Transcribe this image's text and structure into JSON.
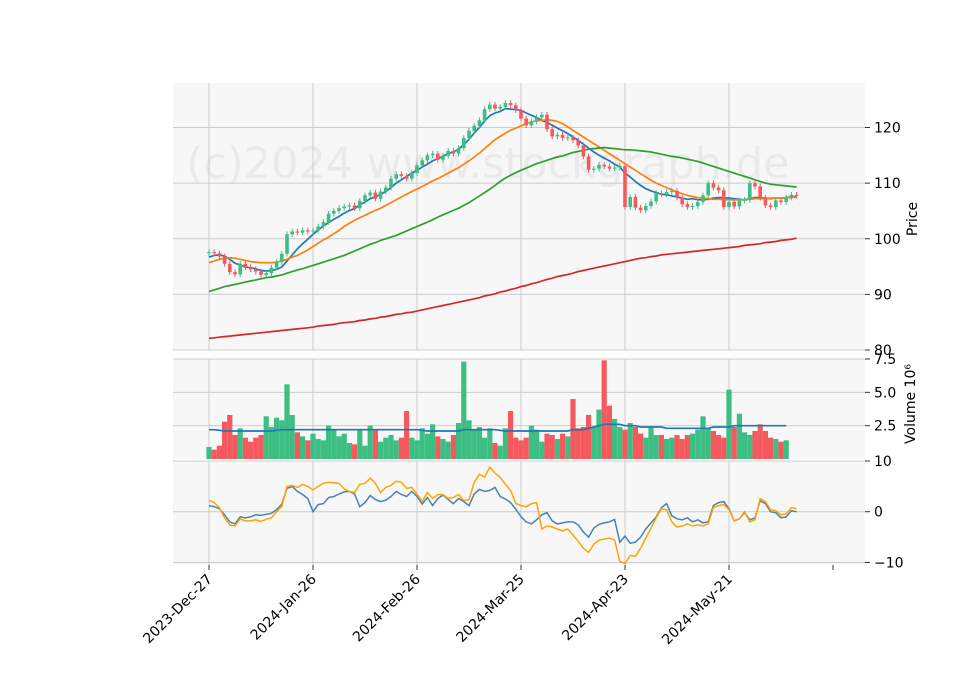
{
  "watermark": "(c)2024 www.stockgraph.de",
  "colors": {
    "panel_bg": "#f7f7f7",
    "grid": "#cccccc",
    "up": "#3dbe83",
    "down": "#f5585d",
    "ma_blue": "#1f77b4",
    "ma_orange": "#ff7f0e",
    "ma_green": "#2ca02c",
    "ma_red": "#d62728",
    "osc_fast": "#4682b4",
    "osc_slow": "#ffa500",
    "vol_ma": "#1f77b4"
  },
  "chart_data": [
    {
      "type": "candlestick",
      "ylabel": "Price",
      "ylim": [
        80,
        128
      ],
      "yticks": [
        80,
        90,
        100,
        110,
        120
      ],
      "x_tick_labels": [
        "2023-Dec-27",
        "2024-Jan-26",
        "2024-Feb-26",
        "2024-Mar-25",
        "2024-Apr-23",
        "2024-May-21"
      ],
      "x_tick_index": [
        0,
        20,
        40,
        60,
        80,
        100
      ],
      "closes": [
        97.6,
        97.4,
        96.8,
        95.5,
        94.0,
        93.6,
        95.5,
        94.9,
        94.5,
        94.1,
        93.5,
        93.8,
        94.8,
        95.8,
        97.3,
        100.8,
        101.3,
        101.1,
        101.5,
        101.3,
        101.5,
        102.2,
        103.0,
        104.5,
        105.0,
        105.5,
        105.8,
        106.0,
        105.5,
        106.8,
        107.8,
        108.3,
        107.2,
        108.5,
        109.2,
        110.8,
        111.6,
        111.3,
        110.8,
        111.8,
        113.2,
        114.1,
        115.0,
        115.3,
        114.2,
        114.9,
        115.8,
        115.3,
        116.3,
        118.1,
        119.4,
        120.3,
        121.3,
        123.3,
        124.1,
        123.4,
        123.7,
        124.4,
        124.0,
        123.1,
        121.6,
        120.4,
        121.1,
        121.8,
        122.3,
        119.7,
        118.4,
        118.7,
        118.1,
        118.2,
        117.7,
        116.8,
        114.8,
        112.4,
        112.6,
        113.3,
        113.0,
        112.6,
        112.8,
        113.1,
        105.7,
        107.5,
        105.6,
        105.1,
        105.9,
        106.7,
        108.2,
        108.0,
        108.4,
        108.6,
        107.4,
        106.2,
        105.7,
        105.9,
        106.6,
        107.8,
        110.0,
        109.2,
        108.7,
        105.7,
        106.6,
        105.8,
        106.9,
        107.0,
        110.0,
        109.4,
        107.4,
        106.0,
        105.7,
        106.9,
        106.6,
        107.4,
        107.9,
        107.7
      ],
      "series": [
        {
          "name": "",
          "color_key": "ma_blue",
          "values": [
            96.7,
            97.0,
            97.1,
            96.9,
            96.3,
            95.6,
            95.3,
            94.9,
            94.8,
            94.6,
            94.3,
            94.2,
            94.3,
            94.5,
            94.9,
            96.0,
            97.1,
            98.2,
            99.1,
            99.9,
            100.8,
            101.6,
            102.3,
            102.9,
            103.5,
            104.0,
            104.6,
            105.1,
            105.4,
            106.1,
            106.6,
            107.2,
            107.5,
            108.0,
            108.5,
            109.2,
            110.0,
            110.6,
            111.2,
            111.8,
            112.3,
            112.9,
            113.4,
            114.0,
            114.4,
            114.8,
            115.3,
            115.6,
            116.1,
            116.9,
            117.9,
            119.0,
            120.0,
            121.2,
            122.1,
            122.6,
            122.9,
            123.4,
            123.3,
            123.2,
            123.1,
            122.6,
            122.2,
            121.8,
            121.3,
            120.9,
            120.4,
            119.9,
            119.4,
            118.9,
            118.3,
            117.7,
            117.0,
            116.3,
            115.6,
            115.0,
            114.5,
            114.0,
            113.4,
            112.9,
            111.8,
            111.1,
            110.3,
            109.6,
            109.0,
            108.6,
            108.3,
            108.0,
            107.9,
            107.7,
            107.5,
            107.3,
            107.1,
            107.2,
            107.0,
            107.0,
            107.1,
            107.3,
            107.4,
            107.4,
            107.3,
            107.2,
            107.1,
            107.0,
            107.2,
            107.4,
            107.4,
            107.3,
            107.2,
            107.3,
            107.3,
            107.4,
            107.5,
            107.6
          ]
        },
        {
          "name": "",
          "color_key": "ma_orange",
          "values": [
            95.7,
            96.0,
            96.3,
            96.5,
            96.6,
            96.5,
            96.3,
            96.1,
            95.9,
            95.8,
            95.7,
            95.7,
            95.7,
            95.8,
            96.0,
            96.3,
            96.7,
            97.0,
            97.5,
            98.0,
            98.6,
            99.2,
            99.8,
            100.3,
            100.9,
            101.5,
            102.2,
            102.8,
            103.3,
            103.8,
            104.2,
            104.7,
            105.1,
            105.5,
            106.0,
            106.5,
            107.0,
            107.5,
            108.0,
            108.5,
            108.9,
            109.4,
            109.9,
            110.4,
            110.8,
            111.3,
            111.8,
            112.3,
            112.8,
            113.4,
            114.0,
            114.7,
            115.4,
            116.2,
            117.0,
            117.8,
            118.4,
            119.0,
            119.5,
            119.9,
            120.3,
            120.7,
            121.0,
            121.2,
            121.3,
            121.4,
            121.3,
            121.1,
            120.7,
            120.1,
            119.5,
            118.9,
            118.3,
            117.7,
            117.1,
            116.5,
            115.9,
            115.3,
            114.7,
            114.1,
            113.5,
            112.9,
            112.3,
            111.7,
            111.1,
            110.5,
            110.0,
            109.6,
            109.2,
            108.8,
            108.4,
            108.1,
            107.8,
            107.6,
            107.4,
            107.3,
            107.2,
            107.1,
            107.1,
            107.0,
            107.0,
            107.0,
            107.0,
            107.0,
            107.1,
            107.2,
            107.2,
            107.3,
            107.3,
            107.3,
            107.3,
            107.4,
            107.4,
            107.5
          ]
        },
        {
          "name": "",
          "color_key": "ma_green",
          "values": [
            90.5,
            90.8,
            91.1,
            91.4,
            91.6,
            91.8,
            92.0,
            92.2,
            92.4,
            92.6,
            92.8,
            93.0,
            93.1,
            93.3,
            93.5,
            93.8,
            94.1,
            94.4,
            94.6,
            94.9,
            95.2,
            95.5,
            95.8,
            96.1,
            96.4,
            96.7,
            97.0,
            97.4,
            97.8,
            98.2,
            98.6,
            99.0,
            99.3,
            99.7,
            100.0,
            100.3,
            100.6,
            101.0,
            101.4,
            101.8,
            102.2,
            102.6,
            103.0,
            103.4,
            103.9,
            104.3,
            104.7,
            105.1,
            105.5,
            106.0,
            106.5,
            107.1,
            107.7,
            108.3,
            108.9,
            109.6,
            110.3,
            110.9,
            111.4,
            111.9,
            112.3,
            112.7,
            113.1,
            113.5,
            113.8,
            114.1,
            114.4,
            114.7,
            114.9,
            115.2,
            115.5,
            115.7,
            115.9,
            116.1,
            116.2,
            116.3,
            116.4,
            116.3,
            116.2,
            116.1,
            116.0,
            116.0,
            115.9,
            115.8,
            115.7,
            115.6,
            115.4,
            115.2,
            115.0,
            114.8,
            114.7,
            114.5,
            114.3,
            114.1,
            113.9,
            113.6,
            113.3,
            113.0,
            112.7,
            112.4,
            112.1,
            111.8,
            111.5,
            111.2,
            110.9,
            110.6,
            110.3,
            110.0,
            109.8,
            109.7,
            109.6,
            109.5,
            109.4,
            109.3
          ]
        },
        {
          "name": "",
          "color_key": "ma_red",
          "values": [
            82.1,
            82.2,
            82.3,
            82.4,
            82.5,
            82.6,
            82.7,
            82.8,
            82.9,
            83.0,
            83.1,
            83.2,
            83.3,
            83.4,
            83.5,
            83.6,
            83.7,
            83.8,
            83.9,
            84.0,
            84.1,
            84.3,
            84.4,
            84.5,
            84.6,
            84.8,
            84.9,
            85.0,
            85.1,
            85.3,
            85.4,
            85.6,
            85.7,
            85.9,
            86.0,
            86.2,
            86.4,
            86.5,
            86.7,
            86.8,
            87.0,
            87.2,
            87.4,
            87.6,
            87.8,
            88.0,
            88.2,
            88.4,
            88.6,
            88.8,
            89.0,
            89.2,
            89.4,
            89.7,
            89.9,
            90.1,
            90.4,
            90.6,
            90.9,
            91.1,
            91.4,
            91.6,
            91.9,
            92.1,
            92.4,
            92.7,
            92.9,
            93.2,
            93.4,
            93.6,
            93.8,
            94.1,
            94.3,
            94.5,
            94.7,
            94.9,
            95.1,
            95.3,
            95.5,
            95.7,
            95.9,
            96.1,
            96.3,
            96.5,
            96.6,
            96.8,
            96.9,
            97.1,
            97.2,
            97.3,
            97.4,
            97.5,
            97.6,
            97.7,
            97.8,
            97.9,
            98.0,
            98.1,
            98.2,
            98.3,
            98.4,
            98.5,
            98.6,
            98.8,
            98.9,
            99.0,
            99.1,
            99.3,
            99.4,
            99.5,
            99.7,
            99.8,
            99.9,
            100.1
          ]
        }
      ]
    },
    {
      "type": "bar",
      "ylabel": "Volume  10⁶",
      "ylim": [
        0,
        7.5
      ],
      "yticks": [
        2.5,
        5.0,
        7.5
      ],
      "ytick_labels": [
        "2.5",
        "5.0",
        "7.5"
      ],
      "values": [
        0.9,
        0.7,
        1.0,
        2.8,
        3.3,
        1.8,
        2.3,
        1.6,
        1.3,
        1.6,
        1.8,
        3.2,
        2.4,
        3.1,
        2.9,
        5.6,
        3.3,
        2.0,
        1.7,
        1.4,
        1.9,
        1.5,
        1.4,
        2.5,
        2.2,
        1.7,
        1.9,
        1.2,
        1.1,
        2.2,
        1.0,
        2.5,
        2.2,
        1.3,
        1.6,
        1.8,
        1.4,
        1.6,
        3.6,
        1.6,
        1.4,
        2.3,
        1.9,
        2.6,
        1.7,
        1.5,
        1.3,
        1.8,
        2.7,
        7.3,
        2.9,
        2.2,
        2.4,
        1.6,
        2.3,
        1.2,
        1.0,
        2.3,
        3.6,
        1.6,
        1.4,
        1.6,
        2.5,
        2.2,
        1.3,
        1.9,
        1.8,
        1.5,
        1.9,
        1.7,
        4.5,
        2.3,
        2.4,
        3.3,
        2.4,
        3.7,
        7.4,
        4.0,
        3.0,
        2.4,
        2.2,
        2.7,
        2.4,
        1.9,
        1.6,
        2.4,
        1.8,
        1.8,
        1.5,
        1.6,
        1.8,
        1.5,
        1.8,
        1.9,
        2.2,
        3.2,
        2.3,
        2.1,
        1.8,
        1.6,
        5.2,
        2.4,
        3.4,
        2.0,
        1.8,
        2.1,
        2.6,
        2.1,
        1.6,
        1.5,
        1.3,
        1.4
      ],
      "series": [
        {
          "name": "",
          "color_key": "vol_ma",
          "values": [
            2.2,
            2.2,
            2.15,
            2.1,
            2.1,
            2.1,
            2.1,
            2.1,
            2.1,
            2.1,
            2.1,
            2.1,
            2.1,
            2.15,
            2.2,
            2.2,
            2.2,
            2.2,
            2.2,
            2.2,
            2.2,
            2.2,
            2.2,
            2.2,
            2.2,
            2.2,
            2.2,
            2.2,
            2.2,
            2.2,
            2.2,
            2.2,
            2.2,
            2.2,
            2.2,
            2.2,
            2.2,
            2.2,
            2.2,
            2.2,
            2.2,
            2.15,
            2.1,
            2.1,
            2.1,
            2.1,
            2.1,
            2.1,
            2.1,
            2.2,
            2.2,
            2.2,
            2.2,
            2.2,
            2.2,
            2.2,
            2.15,
            2.1,
            2.1,
            2.1,
            2.1,
            2.1,
            2.1,
            2.1,
            2.1,
            2.1,
            2.1,
            2.1,
            2.1,
            2.1,
            2.2,
            2.2,
            2.2,
            2.3,
            2.4,
            2.5,
            2.6,
            2.6,
            2.6,
            2.6,
            2.5,
            2.5,
            2.5,
            2.4,
            2.4,
            2.4,
            2.4,
            2.4,
            2.3,
            2.3,
            2.3,
            2.3,
            2.3,
            2.3,
            2.3,
            2.3,
            2.3,
            2.4,
            2.4,
            2.4,
            2.4,
            2.5,
            2.5,
            2.5,
            2.5,
            2.5,
            2.5,
            2.5,
            2.5,
            2.5,
            2.5,
            2.5
          ]
        }
      ]
    },
    {
      "type": "line",
      "ylabel": "",
      "ylim": [
        -10.5,
        10
      ],
      "yticks": [
        -10,
        0,
        10
      ],
      "ytick_labels": [
        "−10",
        "0",
        "10"
      ],
      "series": [
        {
          "name": "",
          "color_key": "osc_fast",
          "values": [
            1.2,
            1.0,
            0.6,
            -0.6,
            -2.0,
            -2.4,
            -1.0,
            -1.2,
            -1.0,
            -0.6,
            -0.7,
            -0.5,
            -0.3,
            0.4,
            1.5,
            4.6,
            5.0,
            4.0,
            3.4,
            2.6,
            0.0,
            1.4,
            1.6,
            2.8,
            3.0,
            3.5,
            3.9,
            4.0,
            3.5,
            1.0,
            1.8,
            3.2,
            2.4,
            2.0,
            2.3,
            3.0,
            4.0,
            3.4,
            3.0,
            4.0,
            3.0,
            1.5,
            2.8,
            1.2,
            2.6,
            3.3,
            2.4,
            1.6,
            2.6,
            2.0,
            1.2,
            3.5,
            4.4,
            4.0,
            4.2,
            4.8,
            3.0,
            2.5,
            1.8,
            0.5,
            -1.0,
            -2.0,
            -2.4,
            -1.6,
            -0.6,
            -0.2,
            -1.8,
            -2.4,
            -2.2,
            -2.0,
            -2.0,
            -2.6,
            -4.0,
            -5.0,
            -3.2,
            -2.5,
            -2.2,
            -2.0,
            -1.5,
            -6.0,
            -4.8,
            -6.2,
            -6.0,
            -5.0,
            -3.4,
            -2.2,
            -1.0,
            0.8,
            1.6,
            -0.8,
            -1.4,
            -1.6,
            -1.2,
            -2.0,
            -1.6,
            -2.2,
            -2.0,
            1.2,
            1.8,
            2.0,
            0.6,
            -1.8,
            -1.4,
            -0.2,
            -1.6,
            -1.2,
            2.2,
            1.6,
            0.0,
            -0.2,
            -1.2,
            -1.0,
            0.2,
            0.0
          ]
        },
        {
          "name": "",
          "color_key": "osc_slow",
          "values": [
            2.2,
            1.8,
            0.8,
            -1.2,
            -2.6,
            -2.8,
            -1.4,
            -1.8,
            -1.8,
            -1.6,
            -1.9,
            -1.5,
            -1.2,
            0.0,
            1.0,
            5.0,
            5.2,
            4.8,
            5.4,
            5.0,
            4.3,
            5.0,
            5.6,
            5.8,
            5.7,
            5.6,
            4.5,
            4.0,
            3.8,
            5.4,
            5.6,
            6.6,
            5.6,
            3.8,
            4.8,
            5.2,
            6.0,
            5.8,
            4.6,
            4.8,
            3.5,
            2.0,
            3.8,
            2.6,
            3.4,
            3.4,
            2.6,
            2.8,
            3.4,
            2.2,
            2.4,
            5.8,
            7.4,
            6.8,
            8.8,
            7.6,
            6.8,
            5.4,
            4.2,
            1.6,
            1.2,
            1.0,
            1.6,
            1.8,
            -3.4,
            -2.8,
            -3.0,
            -3.4,
            -3.8,
            -3.4,
            -4.6,
            -5.8,
            -7.2,
            -8.0,
            -6.4,
            -5.6,
            -5.4,
            -5.2,
            -5.6,
            -9.8,
            -10.2,
            -8.6,
            -8.8,
            -7.2,
            -5.2,
            -3.2,
            -1.2,
            0.6,
            0.4,
            -2.0,
            -3.0,
            -2.8,
            -2.4,
            -2.8,
            -2.6,
            -2.8,
            -2.4,
            0.8,
            1.2,
            1.4,
            0.4,
            -1.8,
            -1.4,
            0.0,
            -2.0,
            -1.6,
            2.6,
            2.0,
            0.4,
            0.2,
            -0.6,
            -0.4,
            0.8,
            0.6
          ]
        }
      ]
    }
  ]
}
